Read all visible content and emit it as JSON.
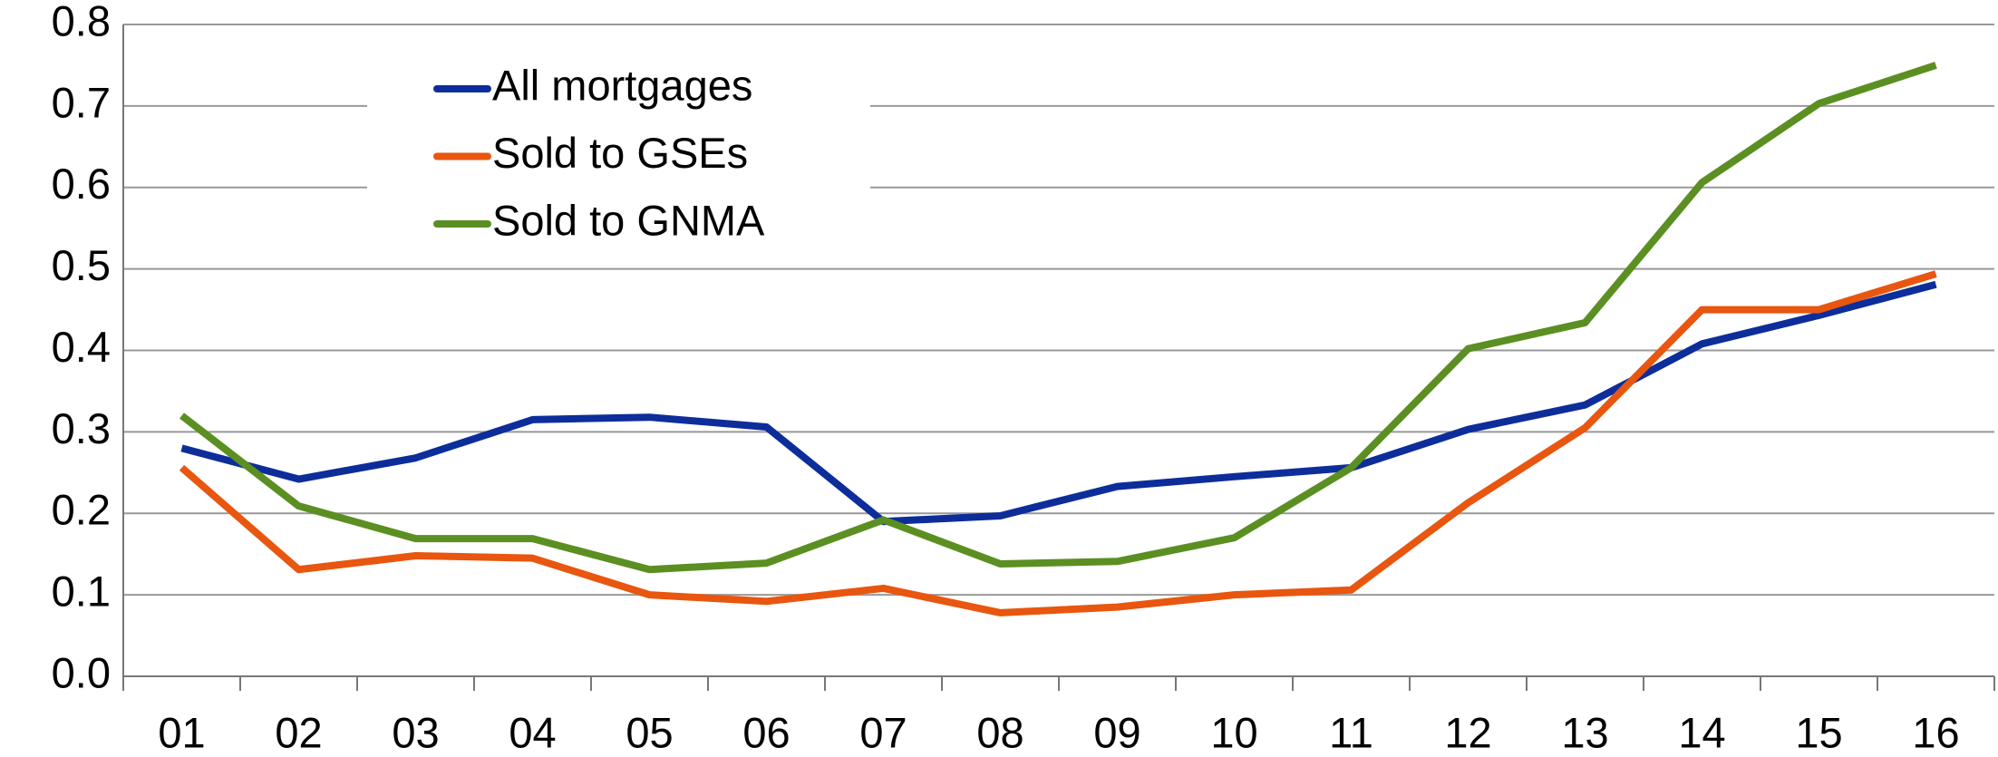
{
  "chart_data": {
    "type": "line",
    "categories": [
      "01",
      "02",
      "03",
      "04",
      "05",
      "06",
      "07",
      "08",
      "09",
      "10",
      "11",
      "12",
      "13",
      "14",
      "15",
      "16"
    ],
    "series": [
      {
        "name": "All mortgages",
        "color": "#0d2d9a",
        "values": [
          0.28,
          0.242,
          0.268,
          0.315,
          0.318,
          0.306,
          0.19,
          0.197,
          0.233,
          0.245,
          0.256,
          0.303,
          0.333,
          0.408,
          0.443,
          0.481
        ]
      },
      {
        "name": "Sold to GSEs",
        "color": "#e8560f",
        "values": [
          0.256,
          0.131,
          0.148,
          0.145,
          0.1,
          0.092,
          0.108,
          0.078,
          0.085,
          0.1,
          0.106,
          0.213,
          0.305,
          0.45,
          0.45,
          0.494
        ]
      },
      {
        "name": "Sold to GNMA",
        "color": "#5b8f22",
        "values": [
          0.32,
          0.209,
          0.169,
          0.169,
          0.131,
          0.139,
          0.192,
          0.138,
          0.141,
          0.17,
          0.256,
          0.402,
          0.434,
          0.606,
          0.703,
          0.75
        ]
      }
    ],
    "ylim": [
      0,
      0.8
    ],
    "yticks": [
      {
        "value": 0,
        "label": "0.0"
      },
      0.1,
      0.2,
      0.3,
      0.4,
      0.5,
      0.6,
      0.7,
      0.8
    ],
    "grid": true,
    "legend": "upper-left"
  }
}
